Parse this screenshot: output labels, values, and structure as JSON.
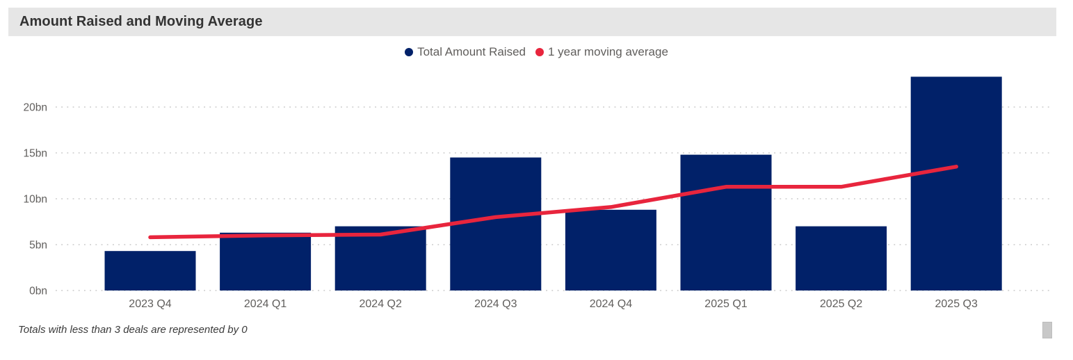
{
  "footer": {
    "note": "Totals with less than 3 deals are represented by 0"
  },
  "colors": {
    "title_bar_bg": "#e6e6e6",
    "axis_text": "#605e5c",
    "gridline": "#c8c8c8",
    "bar": "#012169",
    "line": "#e8253d",
    "scrollbar": "#c8c8c8",
    "title_text": "#333333",
    "footnote_text": "#3b3b3b"
  },
  "chart_data": {
    "type": "bar",
    "title": "Amount Raised and Moving Average",
    "categories": [
      "2023 Q4",
      "2024 Q1",
      "2024 Q2",
      "2024 Q3",
      "2024 Q4",
      "2025 Q1",
      "2025 Q2",
      "2025 Q3"
    ],
    "series": [
      {
        "name": "Total Amount Raised",
        "type": "bar",
        "color": "#012169",
        "values": [
          4.3,
          6.3,
          7.0,
          14.5,
          8.8,
          14.8,
          7.0,
          23.3
        ]
      },
      {
        "name": "1 year moving average",
        "type": "line",
        "color": "#e8253d",
        "values": [
          5.8,
          6.0,
          6.1,
          8.0,
          9.1,
          11.3,
          11.3,
          13.5
        ]
      }
    ],
    "xlabel": "",
    "ylabel": "",
    "units": "bn",
    "yticks": [
      0,
      5,
      10,
      15,
      20
    ],
    "ytick_labels": [
      "0bn",
      "5bn",
      "10bn",
      "15bn",
      "20bn"
    ],
    "ylim": [
      0,
      24
    ],
    "grid": "horizontal-dotted",
    "legend_position": "top-center"
  }
}
